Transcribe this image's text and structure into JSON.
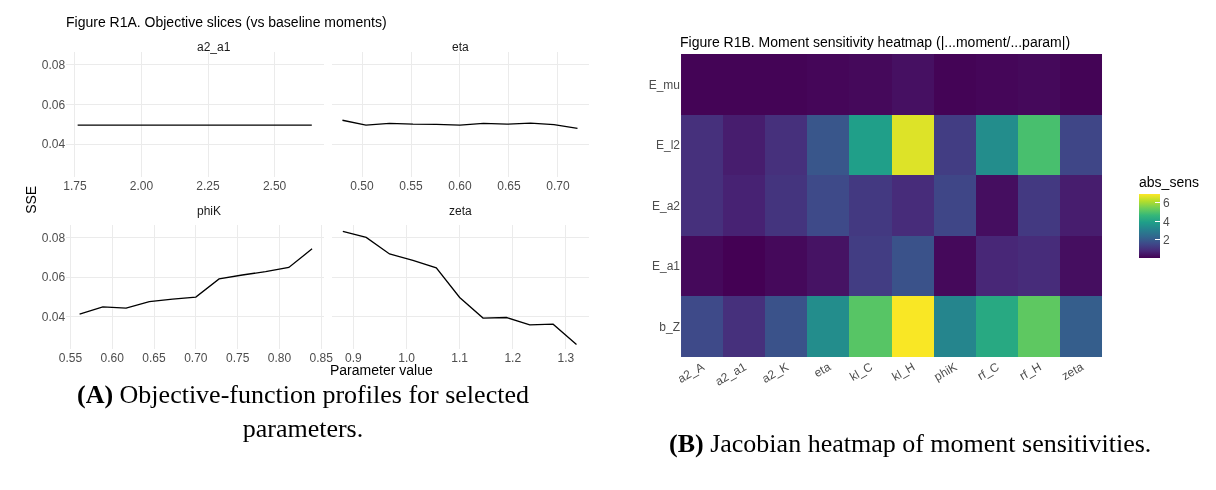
{
  "chart_data": [
    {
      "type": "line",
      "title": "a2_a1",
      "ylabel": "SSE",
      "annotations": [
        "Figure R1A. Objective slices (vs baseline moments)",
        "(A) Objective-function profiles for selected parameters."
      ],
      "x": [
        1.76,
        1.848,
        1.936,
        2.024,
        2.112,
        2.2,
        2.288,
        2.376,
        2.464,
        2.552,
        2.64
      ],
      "series": [
        {
          "color": "#000000",
          "values": [
            0.0496,
            0.0496,
            0.0496,
            0.0496,
            0.0496,
            0.0496,
            0.0496,
            0.0496,
            0.0496,
            0.0496,
            0.0496
          ]
        }
      ],
      "xlim": [
        1.717,
        2.685
      ],
      "xticks": [
        {
          "value": 1.75,
          "label": "1.75"
        },
        {
          "value": 2.0,
          "label": "2.00"
        },
        {
          "value": 2.25,
          "label": "2.25"
        },
        {
          "value": 2.5,
          "label": "2.50"
        }
      ],
      "ylim": [
        0.0235,
        0.0865
      ],
      "yticks": [
        0.04,
        0.06,
        0.08
      ],
      "grid": true
    },
    {
      "type": "line",
      "title": "eta",
      "x": [
        0.48,
        0.504,
        0.528,
        0.552,
        0.576,
        0.6,
        0.624,
        0.648,
        0.672,
        0.696,
        0.72
      ],
      "series": [
        {
          "color": "#000000",
          "values": [
            0.0521,
            0.0496,
            0.0505,
            0.0501,
            0.05,
            0.0496,
            0.0505,
            0.0501,
            0.0507,
            0.0499,
            0.048
          ]
        }
      ],
      "xlim": [
        0.469,
        0.732
      ],
      "xticks": [
        {
          "value": 0.5,
          "label": "0.50"
        },
        0.55,
        {
          "value": 0.6,
          "label": "0.60"
        },
        0.65,
        {
          "value": 0.7,
          "label": "0.70"
        }
      ],
      "ylim": [
        0.0235,
        0.0865
      ],
      "yticks": [
        0.04,
        0.06,
        0.08
      ],
      "grid": true,
      "tick_labels": "x"
    },
    {
      "type": "line",
      "title": "phiK",
      "xlabel": "Parameter value",
      "x": [
        0.561,
        0.5888,
        0.6166,
        0.6444,
        0.6722,
        0.7,
        0.7278,
        0.7556,
        0.7834,
        0.8112,
        0.839
      ],
      "series": [
        {
          "color": "#000000",
          "values": [
            0.0412,
            0.0449,
            0.0443,
            0.0476,
            0.0488,
            0.0499,
            0.0591,
            0.0611,
            0.0628,
            0.0649,
            0.0744
          ]
        }
      ],
      "xlim": [
        0.545,
        0.853
      ],
      "xticks": [
        0.55,
        {
          "value": 0.6,
          "label": "0.60"
        },
        0.65,
        {
          "value": 0.7,
          "label": "0.70"
        },
        0.75,
        {
          "value": 0.8,
          "label": "0.80"
        },
        0.85
      ],
      "ylim": [
        0.0235,
        0.0865
      ],
      "yticks": [
        0.04,
        0.06,
        0.08
      ],
      "grid": true
    },
    {
      "type": "line",
      "title": "zeta",
      "x": [
        0.88,
        0.924,
        0.968,
        1.012,
        1.056,
        1.1,
        1.144,
        1.188,
        1.232,
        1.276,
        1.32
      ],
      "series": [
        {
          "color": "#000000",
          "values": [
            0.0833,
            0.0802,
            0.0718,
            0.0685,
            0.0647,
            0.0497,
            0.0392,
            0.0395,
            0.0358,
            0.0361,
            0.0258
          ]
        }
      ],
      "xlim": [
        0.859,
        1.344
      ],
      "xticks": [
        0.9,
        {
          "value": 1.0,
          "label": "1.0"
        },
        1.1,
        1.2,
        1.3
      ],
      "ylim": [
        0.0235,
        0.0865
      ],
      "yticks": [
        0.04,
        0.06,
        0.08
      ],
      "grid": true,
      "tick_labels": "x"
    },
    {
      "type": "heatmap",
      "title": "Figure R1B. Moment sensitivity heatmap (|...moment/...param|)",
      "clabel": "abs_sens",
      "annotations": [
        "(B) Jacobian heatmap of moment sensitivities."
      ],
      "categories": [
        "a2_A",
        "a2_a1",
        "a2_K",
        "eta",
        "kl_C",
        "kl_H",
        "phiK",
        "rf_C",
        "rf_H",
        "zeta"
      ],
      "y_categories": [
        "E_mu",
        "E_l2",
        "E_a2",
        "E_a1",
        "b_Z"
      ],
      "cells": [
        [
          0.1,
          0.1,
          0.1,
          0.15,
          0.2,
          0.35,
          0.1,
          0.15,
          0.2,
          0.1
        ],
        [
          1.0,
          0.6,
          1.0,
          1.9,
          3.9,
          6.6,
          1.3,
          3.4,
          4.9,
          1.5
        ],
        [
          1.0,
          0.7,
          1.1,
          1.6,
          1.2,
          0.9,
          1.5,
          0.3,
          1.2,
          0.6
        ],
        [
          0.2,
          0.05,
          0.2,
          0.4,
          1.3,
          1.8,
          0.2,
          0.8,
          0.9,
          0.3
        ],
        [
          1.6,
          1.0,
          1.8,
          3.4,
          5.1,
          6.9,
          3.2,
          4.2,
          5.2,
          2.1
        ]
      ],
      "clim": [
        0.05,
        6.94
      ],
      "cticks": [
        2,
        4,
        6
      ]
    }
  ]
}
